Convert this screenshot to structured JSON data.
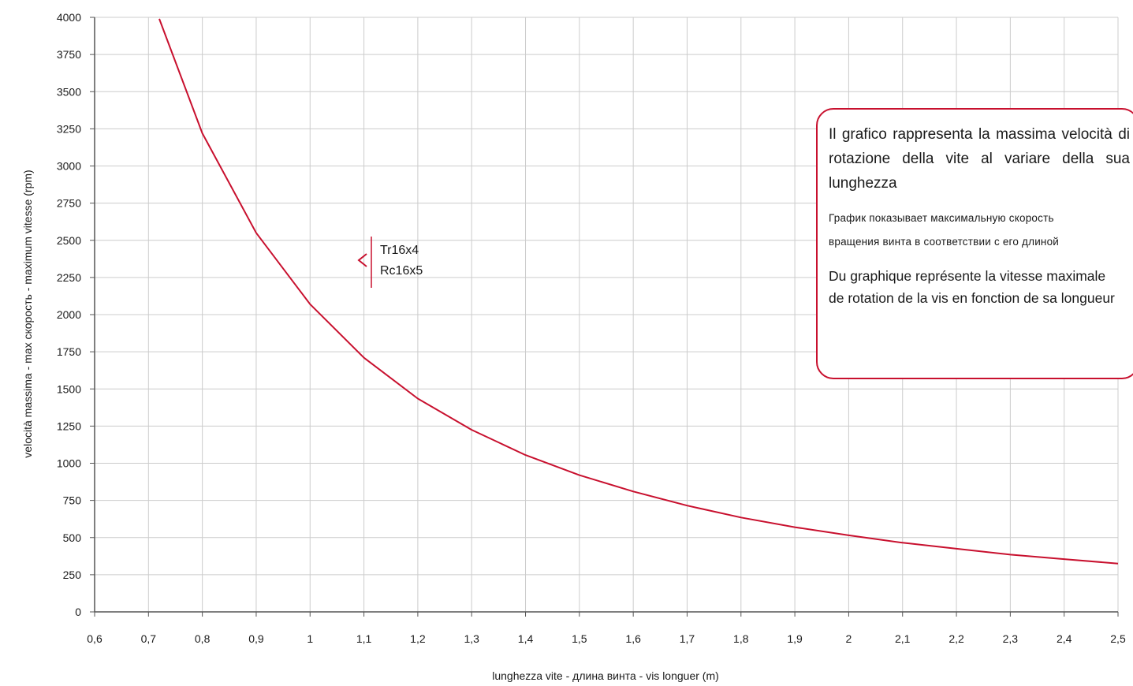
{
  "colors": {
    "series": "#c8102e",
    "grid": "#cccccc",
    "axis": "#555555",
    "box_border": "#c8102e"
  },
  "note_box": {
    "italian": "Il grafico rappresenta la massima velocità di rotazione della vite al variare della sua lunghezza",
    "russian_line1": "График показывает максимальную скорость",
    "russian_line2": "вращения винта в соответствии с его длиной",
    "french_line1": "Du graphique représente la vitesse maximale",
    "french_line2": "de rotation de la vis en fonction de sa longueur"
  },
  "chart_data": {
    "type": "line",
    "xlabel": "lunghezza vite - длина винта -  vis longuer  (m)",
    "ylabel": "velocità massima - max скорость - maximum vitesse (rpm)",
    "xlim": [
      0.6,
      2.5
    ],
    "ylim": [
      0,
      4000
    ],
    "grid": true,
    "x_ticks": [
      "0,6",
      "0,7",
      "0,8",
      "0,9",
      "1",
      "1,1",
      "1,2",
      "1,3",
      "1,4",
      "1,5",
      "1,6",
      "1,7",
      "1,8",
      "1,9",
      "2",
      "2,1",
      "2,2",
      "2,3",
      "2,4",
      "2,5"
    ],
    "y_ticks": [
      "0",
      "250",
      "500",
      "750",
      "1000",
      "1250",
      "1500",
      "1750",
      "2000",
      "2250",
      "2500",
      "2750",
      "3000",
      "3250",
      "3500",
      "3750",
      "4000"
    ],
    "legend": {
      "placement": "upper-middle",
      "labels": [
        "Tr16x4",
        "Rc16x5"
      ]
    },
    "series": [
      {
        "x": [
          0.72,
          0.8,
          0.9,
          1.0,
          1.1,
          1.2,
          1.3,
          1.4,
          1.5,
          1.6,
          1.7,
          1.8,
          1.9,
          2.0,
          2.1,
          2.2,
          2.3,
          2.4,
          2.5
        ],
        "values": [
          3990,
          3220,
          2550,
          2070,
          1710,
          1435,
          1225,
          1055,
          920,
          810,
          715,
          635,
          570,
          515,
          465,
          425,
          385,
          355,
          325
        ]
      }
    ]
  }
}
